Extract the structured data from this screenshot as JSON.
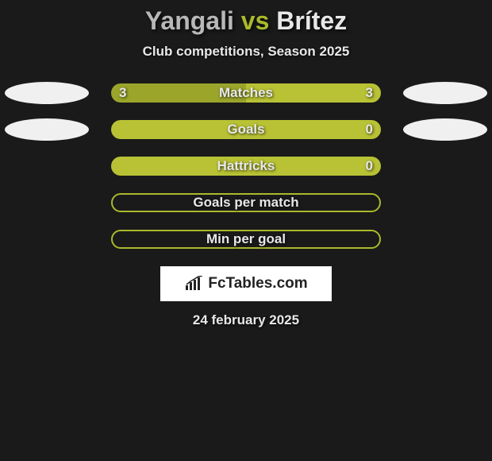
{
  "title": {
    "player1": "Yangali",
    "vs": "vs",
    "player2": "Brítez"
  },
  "subtitle": "Club competitions, Season 2025",
  "colors": {
    "player1_bar": "#9aa52a",
    "player2_bar": "#b8c234",
    "border_olive": "#aab82c",
    "ellipse": "#f0f0f0",
    "bg": "#1a1a1a"
  },
  "stats": [
    {
      "label": "Matches",
      "left_val": "3",
      "right_val": "3",
      "left_pct": 50,
      "right_pct": 50,
      "show_ellipses": true
    },
    {
      "label": "Goals",
      "left_val": "",
      "right_val": "0",
      "left_pct": 0,
      "right_pct": 100,
      "show_ellipses": true
    },
    {
      "label": "Hattricks",
      "left_val": "",
      "right_val": "0",
      "left_pct": 0,
      "right_pct": 100,
      "show_ellipses": false
    },
    {
      "label": "Goals per match",
      "left_val": "",
      "right_val": "",
      "left_pct": 0,
      "right_pct": 0,
      "show_ellipses": false,
      "bordered": true
    },
    {
      "label": "Min per goal",
      "left_val": "",
      "right_val": "",
      "left_pct": 0,
      "right_pct": 0,
      "show_ellipses": false,
      "bordered": true
    }
  ],
  "logo": {
    "text": "FcTables.com"
  },
  "date": "24 february 2025"
}
